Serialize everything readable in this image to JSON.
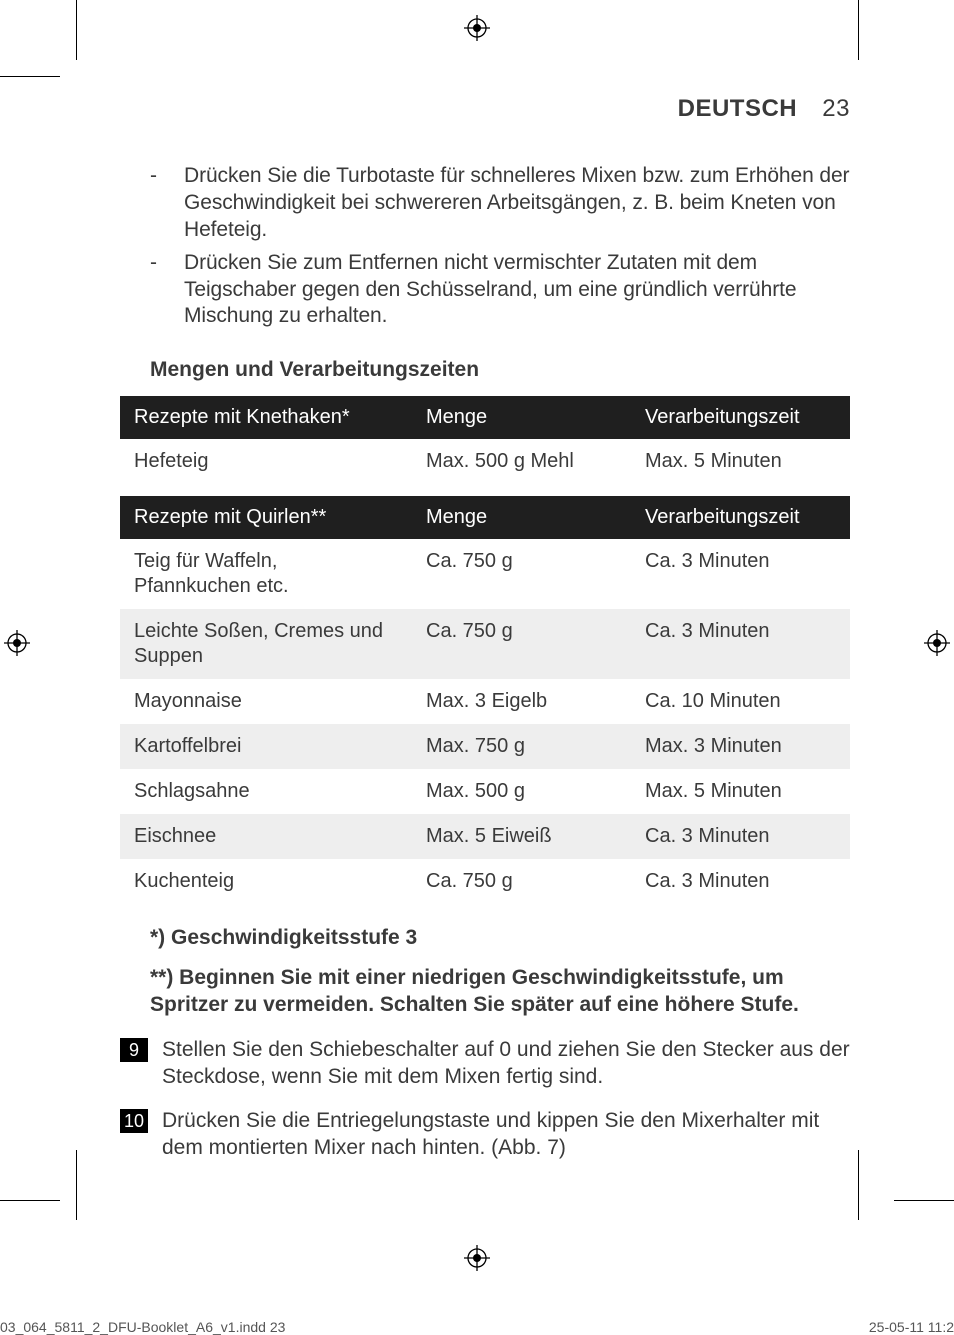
{
  "header": {
    "language": "DEUTSCH",
    "page_number": "23"
  },
  "bullets": [
    "Drücken Sie die Turbotaste für schnelleres Mixen bzw. zum Erhöhen der Geschwindigkeit bei schwereren Arbeitsgängen, z. B. beim Kneten von Hefeteig.",
    "Drücken Sie zum Entfernen nicht vermischter Zutaten mit dem Teigschaber gegen den Schüsselrand, um eine gründlich verrührte Mischung zu erhalten."
  ],
  "section_title": "Mengen und Verarbeitungszeiten",
  "table1": {
    "headers": [
      "Rezepte mit Knethaken*",
      "Menge",
      "Verarbeitungszeit"
    ],
    "rows": [
      {
        "c1": "Hefeteig",
        "c2": "Max. 500 g Mehl",
        "c3": "Max. 5 Minuten",
        "alt": false
      }
    ]
  },
  "table2": {
    "headers": [
      "Rezepte mit Quirlen**",
      "Menge",
      "Verarbeitungszeit"
    ],
    "rows": [
      {
        "c1": "Teig für Waffeln, Pfannkuchen etc.",
        "c2": "Ca. 750 g",
        "c3": "Ca. 3 Minuten",
        "alt": false
      },
      {
        "c1": "Leichte Soßen, Cremes und Suppen",
        "c2": "Ca. 750 g",
        "c3": "Ca. 3 Minuten",
        "alt": true
      },
      {
        "c1": "Mayonnaise",
        "c2": "Max. 3 Eigelb",
        "c3": "Ca. 10 Minuten",
        "alt": false
      },
      {
        "c1": "Kartoffelbrei",
        "c2": "Max. 750 g",
        "c3": "Max. 3 Minuten",
        "alt": true
      },
      {
        "c1": "Schlagsahne",
        "c2": "Max. 500 g",
        "c3": "Max. 5 Minuten",
        "alt": false
      },
      {
        "c1": "Eischnee",
        "c2": "Max. 5 Eiweiß",
        "c3": "Ca. 3 Minuten",
        "alt": true
      },
      {
        "c1": "Kuchenteig",
        "c2": "Ca. 750 g",
        "c3": "Ca. 3 Minuten",
        "alt": false
      }
    ]
  },
  "footnotes": [
    "*) Geschwindigkeitsstufe 3",
    "**) Beginnen Sie mit einer niedrigen Geschwindigkeitsstufe, um Spritzer zu vermeiden. Schalten Sie später auf eine höhere Stufe."
  ],
  "steps": [
    {
      "n": "9",
      "t": "Stellen Sie den Schiebeschalter auf 0 und ziehen Sie den Stecker aus der Steckdose, wenn Sie mit dem Mixen fertig sind."
    },
    {
      "n": "10",
      "t": "Drücken Sie die Entriegelungstaste und kippen Sie den Mixerhalter mit dem montierten Mixer nach hinten.  (Abb. 7)"
    }
  ],
  "footer": {
    "filename": "03_064_5811_2_DFU-Booklet_A6_v1.indd   23",
    "date": "25-05-11   11:2"
  },
  "colors": {
    "text": "#3a3a3a",
    "header_bg": "#1f1f1f",
    "header_fg": "#ffffff",
    "row_alt_bg": "#eeeeee",
    "page_bg": "#ffffff",
    "stepnum_bg": "#000000",
    "stepnum_fg": "#ffffff"
  }
}
